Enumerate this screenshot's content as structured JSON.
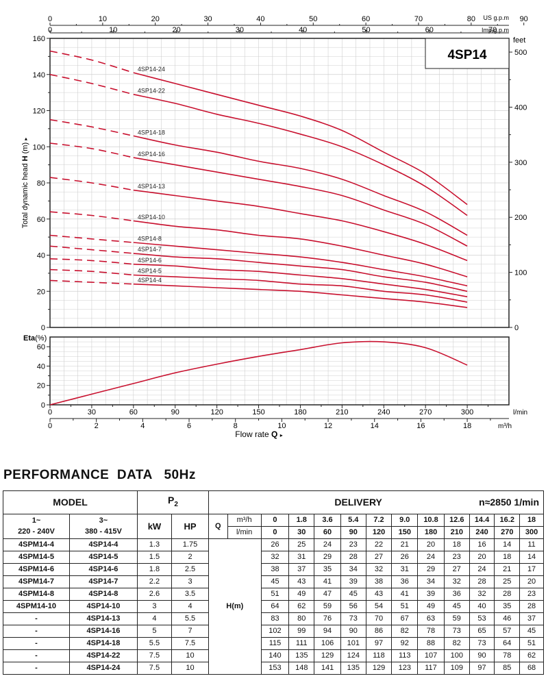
{
  "chart_data": [
    {
      "type": "line",
      "title": "4SP14",
      "ylabel_main": "Total dynamic head",
      "ylabel_sym": "H",
      "ylabel_unit": "(m)",
      "ylabel_arrow": "▸",
      "right_unit": "feet",
      "top_axis_1_label": "US g.p.m",
      "top_axis_2_label": "Imp g.p.m",
      "us_gpm_ticks": [
        "0",
        "10",
        "20",
        "30",
        "40",
        "50",
        "60",
        "70",
        "80",
        "90"
      ],
      "imp_gpm_ticks": [
        "0",
        "10",
        "20",
        "30",
        "40",
        "50",
        "60",
        "70",
        "80"
      ],
      "ylim": [
        0,
        160
      ],
      "y_ticks": [
        "0",
        "20",
        "40",
        "60",
        "80",
        "100",
        "120",
        "140",
        "160"
      ],
      "feet_ticks": [
        "0",
        "100",
        "200",
        "300",
        "400",
        "500"
      ],
      "xlim_lmin": [
        0,
        330
      ],
      "grid": true,
      "x_lmin": [
        0,
        30,
        60,
        90,
        120,
        150,
        180,
        210,
        240,
        270,
        300
      ],
      "series": [
        {
          "name": "4SP14-24",
          "values": [
            153,
            148,
            141,
            135,
            129,
            123,
            117,
            109,
            97,
            85,
            68
          ]
        },
        {
          "name": "4SP14-22",
          "values": [
            140,
            135,
            129,
            124,
            118,
            113,
            107,
            100,
            90,
            78,
            62
          ]
        },
        {
          "name": "4SP14-18",
          "values": [
            115,
            111,
            106,
            101,
            97,
            92,
            88,
            82,
            73,
            64,
            51
          ]
        },
        {
          "name": "4SP14-16",
          "values": [
            102,
            99,
            94,
            90,
            86,
            82,
            78,
            73,
            65,
            57,
            45
          ]
        },
        {
          "name": "4SP14-13",
          "values": [
            83,
            80,
            76,
            73,
            70,
            67,
            63,
            59,
            53,
            46,
            37
          ]
        },
        {
          "name": "4SP14-10",
          "values": [
            64,
            62,
            59,
            56,
            54,
            51,
            49,
            45,
            40,
            35,
            28
          ]
        },
        {
          "name": "4SP14-8",
          "values": [
            51,
            49,
            47,
            45,
            43,
            41,
            39,
            36,
            32,
            28,
            23
          ]
        },
        {
          "name": "4SP14-7",
          "values": [
            45,
            43,
            41,
            39,
            38,
            36,
            34,
            32,
            28,
            25,
            20
          ]
        },
        {
          "name": "4SP14-6",
          "values": [
            38,
            37,
            35,
            34,
            32,
            31,
            29,
            27,
            24,
            21,
            17
          ]
        },
        {
          "name": "4SP14-5",
          "values": [
            32,
            31,
            29,
            28,
            27,
            26,
            24,
            23,
            20,
            18,
            14
          ]
        },
        {
          "name": "4SP14-4",
          "values": [
            26,
            25,
            24,
            23,
            22,
            21,
            20,
            18,
            16,
            14,
            11
          ]
        }
      ]
    },
    {
      "type": "line",
      "ylabel": "Eta(%)",
      "ylim": [
        0,
        70
      ],
      "y_ticks": [
        "0",
        "20",
        "40",
        "60"
      ],
      "grid": true,
      "x_lmin": [
        0,
        30,
        60,
        90,
        120,
        150,
        180,
        210,
        240,
        270,
        300
      ],
      "eta": [
        0,
        11,
        22,
        33,
        42,
        50,
        57,
        64,
        65,
        59,
        41
      ],
      "lmin_ticks": [
        "0",
        "30",
        "60",
        "90",
        "120",
        "150",
        "180",
        "210",
        "240",
        "270",
        "300"
      ],
      "lmin_unit": "l/min",
      "m3h_ticks": [
        "0",
        "2",
        "4",
        "6",
        "8",
        "10",
        "12",
        "14",
        "16",
        "18"
      ],
      "m3h_unit": "m³/h",
      "xlabel": "Flow  rate",
      "xlabel_sym": "Q",
      "xlabel_arrow": "▸"
    }
  ],
  "colors": {
    "curve": "#c8102e",
    "grid": "#cfcfcf",
    "axis": "#222222"
  },
  "performance": {
    "title": "PERFORMANCE  DATA   50Hz",
    "hdr": {
      "model": "MODEL",
      "p2_letter": "P",
      "p2_sub": "2",
      "delivery": "DELIVERY",
      "speed": "n≈2850 1/min",
      "phase1": "1~",
      "volt1": "220 - 240V",
      "phase3": "3~",
      "volt3": "380 - 415V",
      "kw": "kW",
      "hp": "HP",
      "q": "Q",
      "unit_m3h": "m³/h",
      "unit_lmin": "l/min",
      "h": "H",
      "h_unit": "(m)"
    },
    "m3h": [
      "0",
      "1.8",
      "3.6",
      "5.4",
      "7.2",
      "9.0",
      "10.8",
      "12.6",
      "14.4",
      "16.2",
      "18"
    ],
    "lmin": [
      "0",
      "30",
      "60",
      "90",
      "120",
      "150",
      "180",
      "210",
      "240",
      "270",
      "300"
    ],
    "rows": [
      {
        "m1": "4SPM14-4",
        "m3": "4SP14-4",
        "kw": "1.3",
        "hp": "1.75",
        "h": [
          "26",
          "25",
          "24",
          "23",
          "22",
          "21",
          "20",
          "18",
          "16",
          "14",
          "11"
        ]
      },
      {
        "m1": "4SPM14-5",
        "m3": "4SP14-5",
        "kw": "1.5",
        "hp": "2",
        "h": [
          "32",
          "31",
          "29",
          "28",
          "27",
          "26",
          "24",
          "23",
          "20",
          "18",
          "14"
        ]
      },
      {
        "m1": "4SPM14-6",
        "m3": "4SP14-6",
        "kw": "1.8",
        "hp": "2.5",
        "h": [
          "38",
          "37",
          "35",
          "34",
          "32",
          "31",
          "29",
          "27",
          "24",
          "21",
          "17"
        ]
      },
      {
        "m1": "4SPM14-7",
        "m3": "4SP14-7",
        "kw": "2.2",
        "hp": "3",
        "h": [
          "45",
          "43",
          "41",
          "39",
          "38",
          "36",
          "34",
          "32",
          "28",
          "25",
          "20"
        ]
      },
      {
        "m1": "4SPM14-8",
        "m3": "4SP14-8",
        "kw": "2.6",
        "hp": "3.5",
        "h": [
          "51",
          "49",
          "47",
          "45",
          "43",
          "41",
          "39",
          "36",
          "32",
          "28",
          "23"
        ]
      },
      {
        "m1": "4SPM14-10",
        "m3": "4SP14-10",
        "kw": "3",
        "hp": "4",
        "h": [
          "64",
          "62",
          "59",
          "56",
          "54",
          "51",
          "49",
          "45",
          "40",
          "35",
          "28"
        ]
      },
      {
        "m1": "-",
        "m3": "4SP14-13",
        "kw": "4",
        "hp": "5.5",
        "h": [
          "83",
          "80",
          "76",
          "73",
          "70",
          "67",
          "63",
          "59",
          "53",
          "46",
          "37"
        ]
      },
      {
        "m1": "-",
        "m3": "4SP14-16",
        "kw": "5",
        "hp": "7",
        "h": [
          "102",
          "99",
          "94",
          "90",
          "86",
          "82",
          "78",
          "73",
          "65",
          "57",
          "45"
        ]
      },
      {
        "m1": "-",
        "m3": "4SP14-18",
        "kw": "5.5",
        "hp": "7.5",
        "h": [
          "115",
          "111",
          "106",
          "101",
          "97",
          "92",
          "88",
          "82",
          "73",
          "64",
          "51"
        ]
      },
      {
        "m1": "-",
        "m3": "4SP14-22",
        "kw": "7.5",
        "hp": "10",
        "h": [
          "140",
          "135",
          "129",
          "124",
          "118",
          "113",
          "107",
          "100",
          "90",
          "78",
          "62"
        ]
      },
      {
        "m1": "-",
        "m3": "4SP14-24",
        "kw": "7.5",
        "hp": "10",
        "h": [
          "153",
          "148",
          "141",
          "135",
          "129",
          "123",
          "117",
          "109",
          "97",
          "85",
          "68"
        ]
      }
    ]
  }
}
